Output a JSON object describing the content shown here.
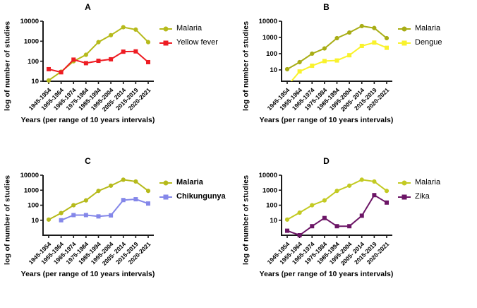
{
  "figure_background": "#ffffff",
  "axis_color": "#1a1a1a",
  "chart_data": [
    {
      "type": "line",
      "panel_label": "A",
      "xlabel": "Years (per range of 10 years intervals)",
      "ylabel": "log of number of studies",
      "categories": [
        "1945-1954",
        "1955-1964",
        "1965-1974",
        "1975-1984",
        "1985-1994",
        "1995-2004",
        "2005- 2014",
        "2015-2019",
        "2020-2021"
      ],
      "yticks": [
        10,
        100,
        1000,
        10000
      ],
      "ylim": [
        10,
        10000
      ],
      "yscale": "log",
      "grid": false,
      "legend_position": "right",
      "series": [
        {
          "name": "Malaria",
          "color": "#b6ba1b",
          "marker": "circle",
          "values": [
            11,
            30,
            100,
            210,
            900,
            2000,
            5000,
            3800,
            900
          ]
        },
        {
          "name": "Yellow fever",
          "color": "#ee1c23",
          "marker": "square",
          "values": [
            40,
            28,
            120,
            80,
            105,
            125,
            300,
            310,
            90
          ]
        }
      ]
    },
    {
      "type": "line",
      "panel_label": "B",
      "xlabel": "Years (per range of 10 years intervals)",
      "ylabel": "log of number of studies",
      "categories": [
        "1945-1954",
        "1955-1964",
        "1965-1974",
        "1975-1984",
        "1985-1994",
        "1995-2004",
        "2005- 2014",
        "2015-2019",
        "2020-2021"
      ],
      "yticks": [
        10,
        100,
        1000,
        10000
      ],
      "ylim": [
        2,
        10000
      ],
      "yscale": "log",
      "grid": false,
      "legend_position": "right",
      "series": [
        {
          "name": "Malaria",
          "color": "#a8ad15",
          "marker": "circle",
          "values": [
            11,
            30,
            100,
            210,
            900,
            2000,
            5000,
            3800,
            900
          ]
        },
        {
          "name": "Dengue",
          "color": "#f9f22c",
          "marker": "square",
          "values": [
            1,
            8,
            18,
            35,
            38,
            80,
            300,
            480,
            230
          ]
        }
      ]
    },
    {
      "type": "line",
      "panel_label": "C",
      "xlabel": "Years (per range of 10 years intervals)",
      "ylabel": "log of number of studies",
      "categories": [
        "1945-1954",
        "1955-1964",
        "1965-1974",
        "1975-1984",
        "1985-1994",
        "1995-2004",
        "2005- 2014",
        "2015-2019",
        "2020-2021"
      ],
      "yticks": [
        10,
        100,
        1000,
        10000
      ],
      "ylim": [
        1,
        10000
      ],
      "yscale": "log",
      "grid": false,
      "legend_position": "right",
      "series": [
        {
          "name": "Malaria",
          "color": "#b6ba1b",
          "marker": "circle",
          "values": [
            11,
            30,
            100,
            210,
            900,
            2000,
            5000,
            3800,
            900
          ]
        },
        {
          "name": "Chikungunya",
          "color": "#8487e9",
          "marker": "square",
          "values": [
            null,
            10,
            22,
            22,
            18,
            21,
            220,
            250,
            130
          ]
        }
      ]
    },
    {
      "type": "line",
      "panel_label": "D",
      "xlabel": "Years (per range of 10 years intervals)",
      "ylabel": "log of number of studies",
      "categories": [
        "1945-1954",
        "1955-1964",
        "1965-1974",
        "1975-1984",
        "1985-1994",
        "1995-2004",
        "2005- 2014",
        "2015-2019",
        "2020-2021"
      ],
      "yticks": [
        10,
        100,
        1000,
        10000
      ],
      "ylim": [
        1,
        10000
      ],
      "yscale": "log",
      "grid": false,
      "legend_position": "right",
      "series": [
        {
          "name": "Malaria",
          "color": "#c3ca23",
          "marker": "circle",
          "values": [
            11,
            32,
            100,
            210,
            900,
            2000,
            5000,
            3800,
            900
          ]
        },
        {
          "name": "Zika",
          "color": "#6c1566",
          "marker": "square",
          "values": [
            2,
            1,
            4,
            14,
            4,
            4,
            20,
            470,
            150
          ]
        }
      ]
    }
  ]
}
